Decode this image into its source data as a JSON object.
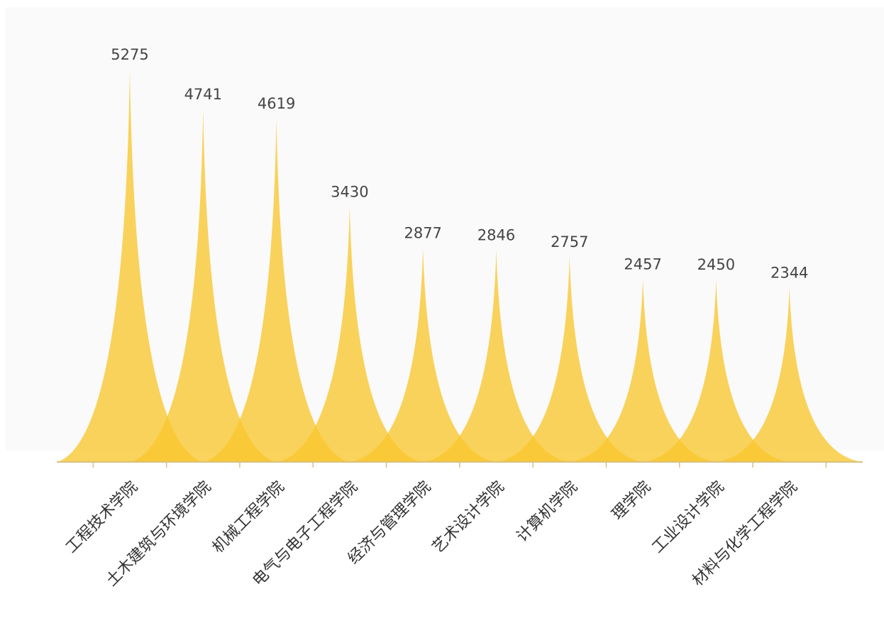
{
  "chart_data": {
    "type": "bar",
    "style": "pictorial-spike",
    "categories": [
      "工程技术学院",
      "土木建筑与环境学院",
      "机械工程学院",
      "电气与电子工程学院",
      "经济与管理学院",
      "艺术设计学院",
      "计算机学院",
      "理学院",
      "工业设计学院",
      "材料与化学工程学院"
    ],
    "values": [
      5275,
      4741,
      4619,
      3430,
      2877,
      2846,
      2757,
      2457,
      2450,
      2344
    ],
    "title": "",
    "xlabel": "",
    "ylabel": "",
    "ylim": [
      0,
      5275
    ],
    "grid": false,
    "legend": "none",
    "data_labels": true,
    "x_tick_rotation_deg": -45
  },
  "colors": {
    "spike_fill": "#f9c62e",
    "axis_line": "#d8c27a",
    "label_text": "#444444",
    "plot_background": "#fafafa"
  }
}
